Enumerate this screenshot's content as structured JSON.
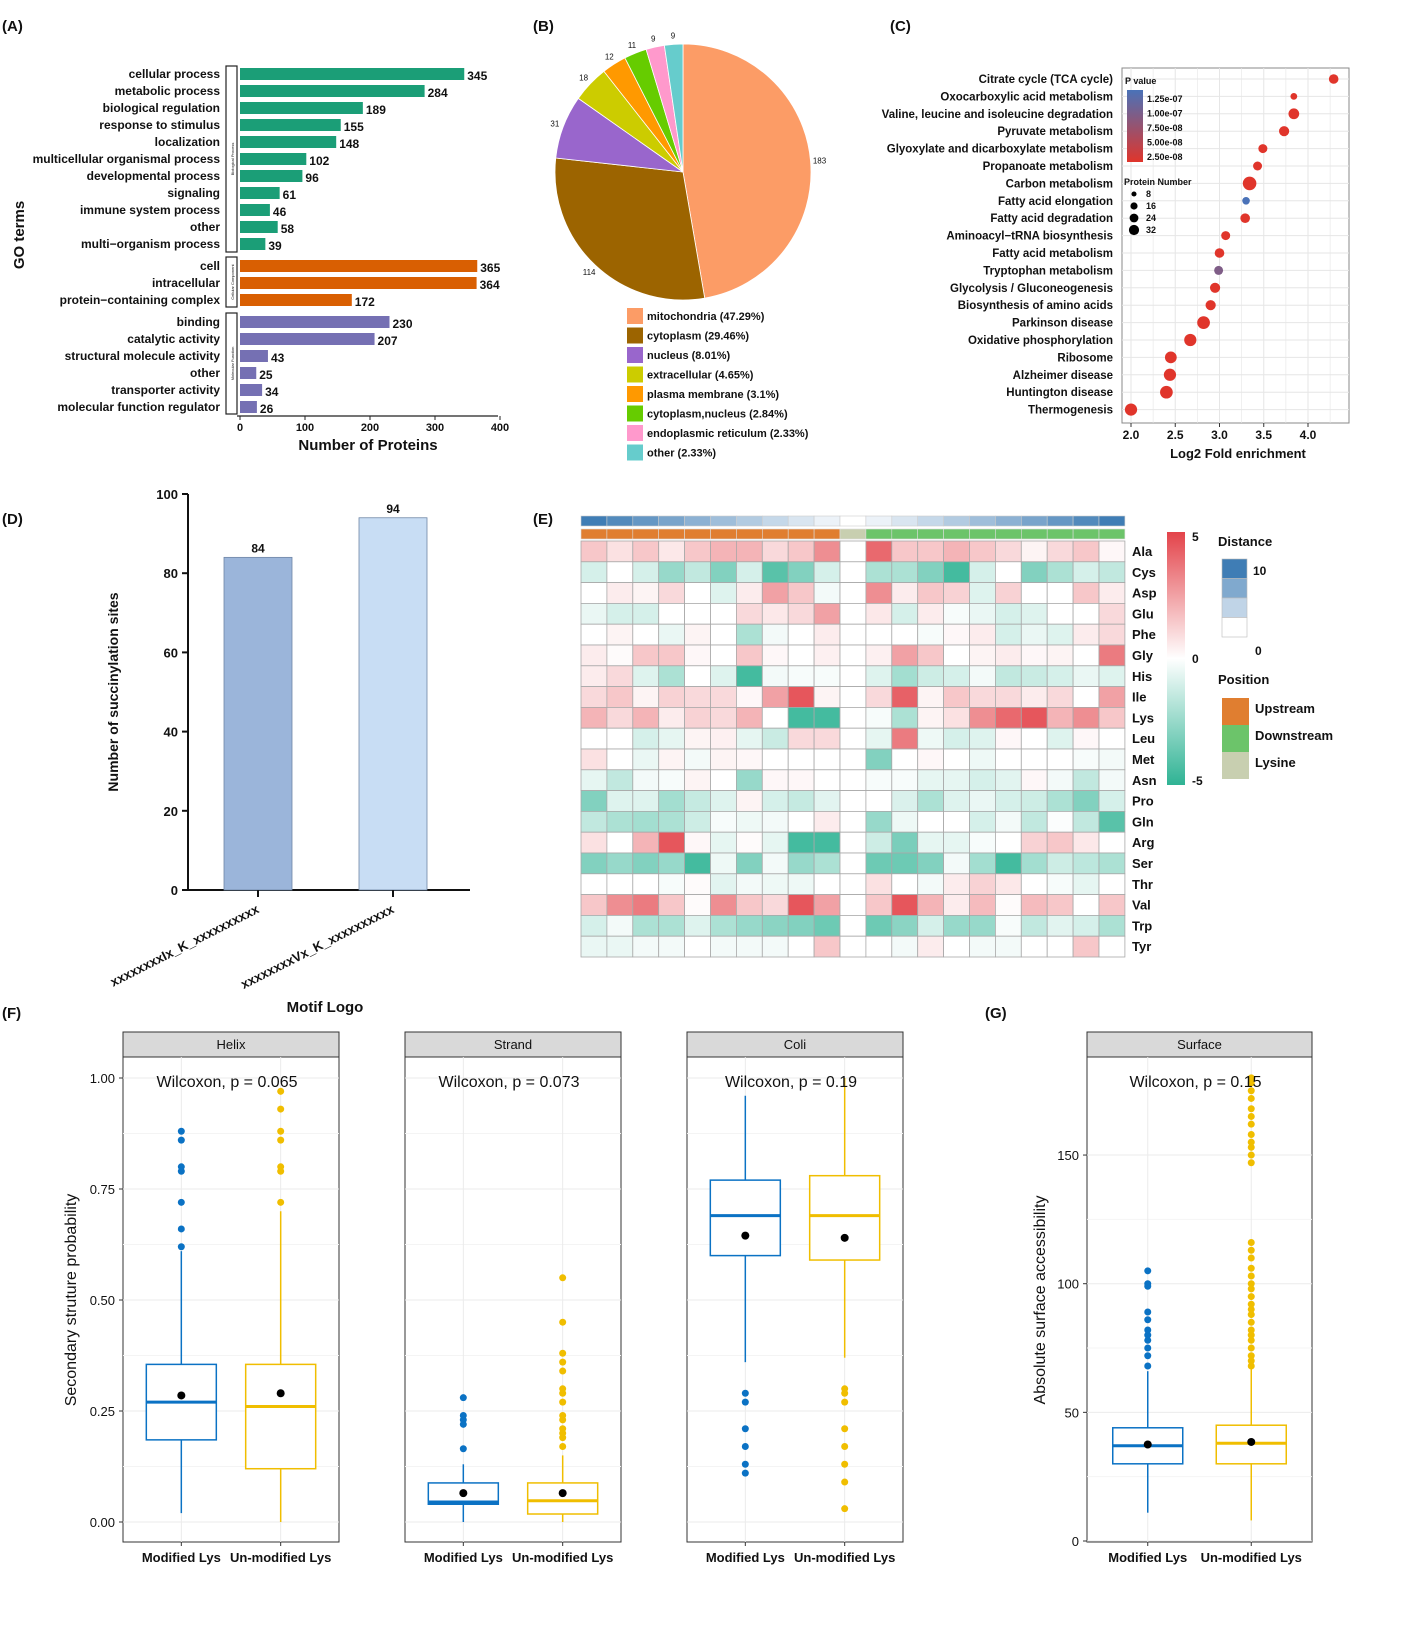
{
  "panel_labels": [
    "(A)",
    "(B)",
    "(C)",
    "(D)",
    "(E)",
    "(F)",
    "(G)"
  ],
  "chart_data": [
    {
      "type": "bar",
      "orientation": "horizontal",
      "xlabel": "Number of Proteins",
      "ylabel": "GO terms",
      "xlim": [
        0,
        400
      ],
      "xticks": [
        "0",
        "100",
        "200",
        "300",
        "400"
      ],
      "groups": [
        {
          "name": "Biological Process",
          "color": "#1b9e77",
          "categories": [
            "cellular process",
            "metabolic process",
            "biological regulation",
            "response to stimulus",
            "localization",
            "multicellular organismal process",
            "developmental process",
            "signaling",
            "immune system process",
            "other",
            "multi−organism process"
          ],
          "values": [
            345,
            284,
            189,
            155,
            148,
            102,
            96,
            61,
            46,
            58,
            39
          ]
        },
        {
          "name": "Cellular Component",
          "color": "#d95f02",
          "categories": [
            "cell",
            "intracellular",
            "protein−containing complex"
          ],
          "values": [
            365,
            364,
            172
          ]
        },
        {
          "name": "Molecular Function",
          "color": "#7570b3",
          "categories": [
            "binding",
            "catalytic activity",
            "structural molecule activity",
            "other",
            "transporter activity",
            "molecular function regulator"
          ],
          "values": [
            230,
            207,
            43,
            25,
            34,
            26
          ]
        }
      ]
    },
    {
      "type": "pie",
      "labels": [
        "mitochondria",
        "cytoplasm",
        "nucleus",
        "extracellular",
        "plasma membrane",
        "cytoplasm,nucleus",
        "endoplasmic reticulum",
        "other"
      ],
      "values": [
        183,
        114,
        31,
        18,
        12,
        11,
        9,
        9
      ],
      "value_labels": [
        "183",
        "114",
        "31",
        "18",
        "12",
        "11",
        "9",
        "9"
      ],
      "legend": [
        "mitochondria (47.29%)",
        "cytoplasm (29.46%)",
        "nucleus (8.01%)",
        "extracellular (4.65%)",
        "plasma membrane (3.1%)",
        "cytoplasm,nucleus (2.84%)",
        "endoplasmic reticulum (2.33%)",
        "other (2.33%)"
      ],
      "colors": [
        "#fc9c66",
        "#9c6400",
        "#9966cc",
        "#cccc00",
        "#ff9900",
        "#66cc00",
        "#ff99cc",
        "#66cccc"
      ]
    },
    {
      "type": "scatter",
      "xlabel": "Log2 Fold enrichment",
      "xlim": [
        1.9,
        4.4
      ],
      "xticks": [
        "2.0",
        "2.5",
        "3.0",
        "3.5",
        "4.0"
      ],
      "categories": [
        "Citrate cycle (TCA cycle)",
        "Oxocarboxylic acid metabolism",
        "Valine, leucine and isoleucine degradation",
        "Pyruvate metabolism",
        "Glyoxylate and dicarboxylate metabolism",
        "Propanoate metabolism",
        "Carbon metabolism",
        "Fatty acid elongation",
        "Fatty acid degradation",
        "Aminoacyl−tRNA biosynthesis",
        "Fatty acid metabolism",
        "Tryptophan metabolism",
        "Glycolysis / Gluconeogenesis",
        "Biosynthesis of amino acids",
        "Parkinson disease",
        "Oxidative phosphorylation",
        "Ribosome",
        "Alzheimer disease",
        "Huntington disease",
        "Thermogenesis"
      ],
      "x": [
        4.29,
        3.84,
        3.84,
        3.73,
        3.49,
        3.43,
        3.34,
        3.3,
        3.29,
        3.07,
        3.0,
        2.99,
        2.95,
        2.9,
        2.82,
        2.67,
        2.45,
        2.44,
        2.4,
        2.0
      ],
      "protein_number": [
        16,
        8,
        20,
        18,
        14,
        14,
        32,
        10,
        16,
        14,
        16,
        14,
        18,
        18,
        28,
        26,
        24,
        26,
        28,
        26
      ],
      "p_value": [
        2.5e-08,
        2.5e-08,
        2.5e-08,
        2.5e-08,
        2.5e-08,
        2.5e-08,
        2.5e-08,
        1.25e-07,
        2.5e-08,
        2.5e-08,
        2.5e-08,
        9e-08,
        2.5e-08,
        2.5e-08,
        2.5e-08,
        2.5e-08,
        2.5e-08,
        2.5e-08,
        2.5e-08,
        2.5e-08
      ],
      "legend_p_title": "P value",
      "legend_p_labels": [
        "1.25e-07",
        "1.00e-07",
        "7.50e-08",
        "5.00e-08",
        "2.50e-08"
      ],
      "legend_size_title": "Protein Number",
      "legend_size_labels": [
        "8",
        "16",
        "24",
        "32"
      ],
      "legend_size_values": [
        8,
        16,
        24,
        32
      ],
      "color_low_p": "#e0352b",
      "color_high_p": "#4a72b8"
    },
    {
      "type": "bar",
      "categories": [
        "xxxxxxxxIx_K_xxxxxxxxxx",
        "xxxxxxxxVx_K_xxxxxxxxxx"
      ],
      "values": [
        84,
        94
      ],
      "value_labels": [
        "84",
        "94"
      ],
      "colors": [
        "#9bb5da",
        "#c8ddf4"
      ],
      "xlabel": "Motif Logo",
      "ylabel": "Number of succinylation sites",
      "ylim": [
        0,
        100
      ],
      "yticks": [
        "0",
        "20",
        "40",
        "60",
        "80",
        "100"
      ]
    },
    {
      "type": "heatmap",
      "rows": [
        "Ala",
        "Cys",
        "Asp",
        "Glu",
        "Phe",
        "Gly",
        "His",
        "Ile",
        "Lys",
        "Leu",
        "Met",
        "Asn",
        "Pro",
        "Gln",
        "Arg",
        "Ser",
        "Thr",
        "Val",
        "Trp",
        "Tyr"
      ],
      "distance": [
        10,
        9,
        8,
        7,
        6,
        5,
        4,
        3,
        2,
        1,
        0,
        1,
        2,
        3,
        4,
        5,
        6,
        7,
        8,
        9,
        10
      ],
      "position": [
        "Upstream",
        "Upstream",
        "Upstream",
        "Upstream",
        "Upstream",
        "Upstream",
        "Upstream",
        "Upstream",
        "Upstream",
        "Upstream",
        "Lysine",
        "Downstream",
        "Downstream",
        "Downstream",
        "Downstream",
        "Downstream",
        "Downstream",
        "Downstream",
        "Downstream",
        "Downstream",
        "Downstream"
      ],
      "values": [
        [
          1.5,
          0.8,
          1.5,
          0.6,
          1.5,
          2,
          2,
          1,
          1.5,
          3,
          0,
          4,
          1.5,
          1.5,
          2,
          1.5,
          1,
          0.3,
          1,
          1.5,
          0.2
        ],
        [
          -1,
          0,
          -1,
          -2.5,
          -1.5,
          -3,
          -1,
          -4,
          -3,
          -1,
          0,
          -2,
          -2,
          -3,
          -4.5,
          -1,
          0,
          -3,
          -2,
          -1,
          -1.5
        ],
        [
          0,
          0.5,
          0.3,
          1,
          0,
          -0.8,
          0.5,
          2.5,
          1.5,
          -0.3,
          0,
          3,
          0.5,
          1.5,
          1.2,
          -0.8,
          1.2,
          0,
          0,
          1.5,
          0.5
        ],
        [
          -0.5,
          -1,
          -1,
          0,
          0,
          0,
          1,
          0.6,
          1,
          2.5,
          0,
          0.6,
          -1,
          0.5,
          -0.2,
          -0.5,
          -1,
          -0.8,
          0,
          0,
          1
        ],
        [
          0,
          0.3,
          0,
          -0.5,
          0.3,
          0,
          -2,
          -0.3,
          0,
          0.5,
          0,
          0,
          0,
          -0.2,
          0.2,
          0.5,
          -1,
          -0.5,
          -0.8,
          0.5,
          1
        ],
        [
          0.5,
          0.1,
          1.5,
          1.5,
          0.2,
          0,
          1.5,
          0.2,
          0,
          0.4,
          0,
          0.4,
          2.5,
          1.5,
          0,
          0.3,
          0.5,
          0.2,
          0.3,
          0,
          3.5
        ],
        [
          0.5,
          1,
          -0.8,
          -2,
          0,
          -0.8,
          -4.5,
          -0.3,
          -0.2,
          -0.2,
          0,
          -0.8,
          -2.2,
          -1.2,
          -1,
          -0.3,
          -1.5,
          -1.3,
          -1,
          -0.5,
          -0.8
        ],
        [
          1,
          1.5,
          0.3,
          1.2,
          1,
          1,
          0.2,
          2.5,
          4.5,
          0.3,
          0,
          1,
          4.2,
          0.3,
          1.5,
          1,
          1,
          0.5,
          1,
          0,
          2.5
        ],
        [
          2,
          1,
          2,
          0.5,
          1.2,
          1,
          2,
          0,
          -4.5,
          -4.5,
          0,
          -0.2,
          -2,
          0.3,
          0.8,
          3,
          4,
          4.5,
          2,
          3,
          1.5
        ],
        [
          0,
          0,
          -1,
          -0.6,
          0.3,
          0.4,
          -0.6,
          -1.3,
          1,
          1,
          0,
          -0.6,
          3.5,
          -0.4,
          -1,
          -0.8,
          0.2,
          0,
          -0.8,
          0.2,
          0
        ],
        [
          0.8,
          0,
          -0.5,
          0.3,
          -0.3,
          0.3,
          0.2,
          0,
          0,
          0,
          0,
          -3,
          0,
          0.2,
          0,
          -0.4,
          0,
          0,
          0,
          -0.2,
          -0.3
        ],
        [
          -0.6,
          -1.5,
          -0.3,
          -0.2,
          0.3,
          0,
          -2.5,
          0.2,
          0.2,
          0,
          0,
          -0.2,
          -0.2,
          -0.6,
          -0.6,
          -1,
          -0.7,
          0.2,
          -0.3,
          -1.5,
          -0.3
        ],
        [
          -3,
          -0.8,
          -0.8,
          -2.2,
          -1.4,
          -0.8,
          0.3,
          -1,
          -1.4,
          -0.7,
          0,
          0,
          -0.9,
          -2,
          -0.8,
          -0.5,
          -1,
          -1.2,
          -2,
          -3,
          -1
        ],
        [
          -1.5,
          -2,
          -2.2,
          -2,
          -1.2,
          -0.2,
          -0.4,
          -0.3,
          0,
          0.5,
          0,
          -2.5,
          -0.4,
          0,
          0,
          -1,
          -0.3,
          -1.5,
          -0.1,
          -1.5,
          -4
        ],
        [
          0.8,
          0,
          2,
          4.5,
          0.2,
          -0.6,
          0.1,
          -0.6,
          -4.5,
          -4.5,
          0,
          -1.2,
          -3.2,
          -0.6,
          -0.6,
          -0.2,
          0,
          1.2,
          1.5,
          0.6,
          0
        ],
        [
          -3,
          -2.5,
          -3,
          -2.5,
          -4.5,
          -0.4,
          -3,
          -0.3,
          -2.5,
          -2,
          0,
          -3.5,
          -3.5,
          -3,
          -0.3,
          -2.2,
          -4.5,
          -2.2,
          -1.2,
          -1.6,
          -2
        ],
        [
          0,
          0,
          0,
          -0.2,
          0.1,
          -0.7,
          -0.3,
          -0.4,
          -0.4,
          0,
          0,
          0.8,
          0,
          -0.3,
          0.5,
          1.2,
          0.6,
          0,
          -0.2,
          -0.6,
          0
        ],
        [
          1.5,
          3,
          3.5,
          1.5,
          0.1,
          3,
          1.5,
          1,
          4.5,
          2.5,
          0,
          1.5,
          4.5,
          2,
          0.5,
          1.8,
          0.1,
          1.8,
          1.5,
          0,
          1.5
        ],
        [
          -1,
          -0.3,
          -2,
          -2,
          -0.8,
          -2,
          -2.5,
          -2.8,
          -3,
          -3.5,
          0,
          -3.5,
          -2.8,
          -1,
          -2.5,
          -2.5,
          -0.2,
          -1.5,
          -0.7,
          -1,
          -2
        ],
        [
          -0.5,
          -0.5,
          -0.3,
          -0.3,
          0,
          -0.3,
          -0.3,
          -0.3,
          0,
          1.5,
          0,
          0,
          -0.3,
          0.5,
          0,
          -0.3,
          -0.3,
          0,
          0,
          1.5,
          0
        ]
      ],
      "value_range": [
        -5,
        5
      ],
      "colorbar_labels": [
        "5",
        "0",
        "-5"
      ],
      "color_pos": "#e3434a",
      "color_neg": "#2fb394",
      "legend_distance_title": "Distance",
      "legend_distance_labels": [
        "10",
        "0"
      ],
      "distance_color": "#3f7db5",
      "legend_position_title": "Position",
      "legend_position_labels": [
        "Upstream",
        "Downstream",
        "Lysine"
      ],
      "position_colors": {
        "Upstream": "#e07e30",
        "Downstream": "#6cc46a",
        "Lysine": "#c8cfb0"
      }
    },
    {
      "type": "box",
      "ylabel": "Secondary struture probability",
      "ylim": [
        0,
        1
      ],
      "yticks": [
        "0.00",
        "0.25",
        "0.50",
        "0.75",
        "1.00"
      ],
      "categories": [
        "Modified Lys",
        "Un-modified Lys"
      ],
      "colors": [
        "#0b72c4",
        "#f0be00"
      ],
      "facets": [
        {
          "title": "Helix",
          "annotation": "Wilcoxon, p = 0.065",
          "groups": [
            {
              "lower": 0.02,
              "q1": 0.185,
              "median": 0.27,
              "q3": 0.355,
              "upper": 0.61,
              "mean": 0.285,
              "outliers": [
                0.62,
                0.66,
                0.72,
                0.79,
                0.8,
                0.86,
                0.88
              ]
            },
            {
              "lower": 0.0,
              "q1": 0.12,
              "median": 0.26,
              "q3": 0.355,
              "upper": 0.7,
              "mean": 0.29,
              "outliers": [
                0.72,
                0.79,
                0.8,
                0.86,
                0.88,
                0.93,
                0.97
              ]
            }
          ]
        },
        {
          "title": "Strand",
          "annotation": "Wilcoxon, p = 0.073",
          "groups": [
            {
              "lower": 0.0,
              "q1": 0.04,
              "median": 0.045,
              "q3": 0.088,
              "upper": 0.13,
              "mean": 0.065,
              "outliers": [
                0.165,
                0.22,
                0.23,
                0.24,
                0.28
              ]
            },
            {
              "lower": 0.0,
              "q1": 0.018,
              "median": 0.048,
              "q3": 0.088,
              "upper": 0.15,
              "mean": 0.065,
              "outliers": [
                0.17,
                0.19,
                0.2,
                0.21,
                0.23,
                0.24,
                0.27,
                0.29,
                0.3,
                0.34,
                0.36,
                0.38,
                0.45,
                0.55
              ]
            }
          ]
        },
        {
          "title": "Coli",
          "annotation": "Wilcoxon, p = 0.19",
          "groups": [
            {
              "lower": 0.36,
              "q1": 0.6,
              "median": 0.69,
              "q3": 0.77,
              "upper": 0.96,
              "mean": 0.645,
              "outliers": [
                0.29,
                0.27,
                0.21,
                0.17,
                0.13,
                0.11
              ]
            },
            {
              "lower": 0.37,
              "q1": 0.59,
              "median": 0.69,
              "q3": 0.78,
              "upper": 1.0,
              "mean": 0.64,
              "outliers": [
                0.3,
                0.29,
                0.27,
                0.21,
                0.17,
                0.13,
                0.09,
                0.03
              ]
            }
          ]
        }
      ]
    },
    {
      "type": "box",
      "ylabel": "Absolute surface accessibility",
      "ylim": [
        0,
        180
      ],
      "yticks": [
        "0",
        "50",
        "100",
        "150"
      ],
      "categories": [
        "Modified Lys",
        "Un-modified Lys"
      ],
      "colors": [
        "#0b72c4",
        "#f0be00"
      ],
      "facets": [
        {
          "title": "Surface",
          "annotation": "Wilcoxon, p = 0.15",
          "groups": [
            {
              "lower": 11,
              "q1": 30,
              "median": 37,
              "q3": 44,
              "upper": 66,
              "mean": 37.5,
              "outliers": [
                68,
                72,
                75,
                78,
                80,
                82,
                86,
                89,
                99,
                100,
                105
              ]
            },
            {
              "lower": 8,
              "q1": 30,
              "median": 38,
              "q3": 45,
              "upper": 67,
              "mean": 38.5,
              "outliers": [
                68,
                70,
                72,
                75,
                78,
                80,
                82,
                85,
                88,
                90,
                92,
                95,
                98,
                100,
                103,
                106,
                110,
                113,
                116,
                147,
                150,
                153,
                155,
                158,
                162,
                165,
                168,
                172,
                175,
                178,
                180
              ]
            }
          ]
        }
      ]
    }
  ]
}
